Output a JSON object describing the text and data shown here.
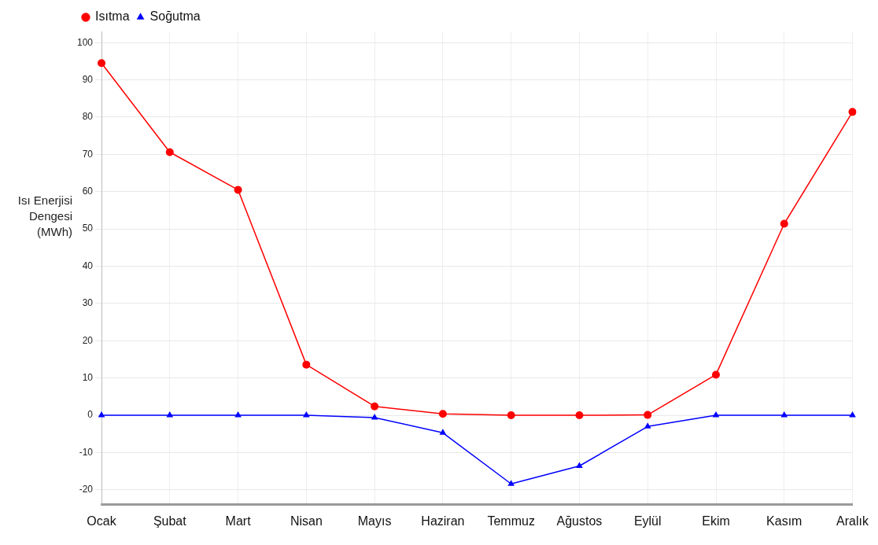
{
  "chart_data": {
    "type": "line",
    "ylabel": "Isı Enerjisi Dengesi (MWh)",
    "categories": [
      "Ocak",
      "Şubat",
      "Mart",
      "Nisan",
      "Mayıs",
      "Haziran",
      "Temmuz",
      "Ağustos",
      "Eylül",
      "Ekim",
      "Kasım",
      "Aralık"
    ],
    "series": [
      {
        "name": "Isıtma",
        "color": "#ff0000",
        "marker": "circle",
        "values": [
          94.5,
          70.6,
          60.5,
          13.6,
          2.4,
          0.4,
          0,
          0,
          0.1,
          10.9,
          51.4,
          81.4
        ]
      },
      {
        "name": "Soğutma",
        "color": "#0000ff",
        "marker": "triangle",
        "values": [
          0,
          0,
          0,
          0,
          -0.6,
          -4.7,
          -18.4,
          -13.6,
          -3,
          0,
          0,
          0
        ]
      }
    ],
    "ylim": [
      -24,
      103
    ],
    "yticks": [
      -20,
      -10,
      0,
      10,
      20,
      30,
      40,
      50,
      60,
      70,
      80,
      90,
      100
    ],
    "grid": true,
    "legend": "top left",
    "line_style": "solid"
  }
}
